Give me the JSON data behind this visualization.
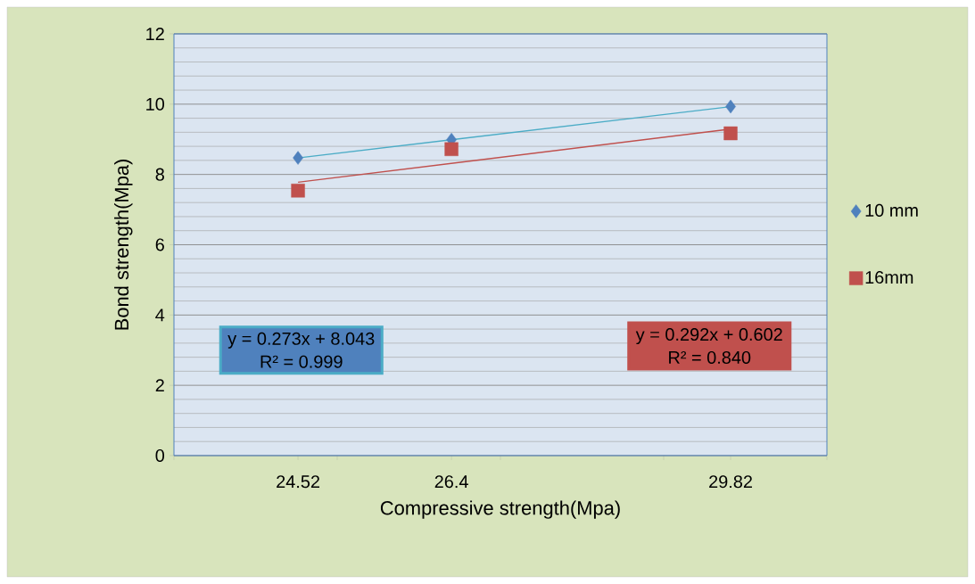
{
  "chart_data": {
    "type": "scatter",
    "xlabel": "Compressive strength(Mpa)",
    "ylabel": "Bond strength(Mpa)",
    "xlim": [
      23,
      31
    ],
    "xticks": [
      {
        "value": 23,
        "label": null
      },
      {
        "value": 24.52,
        "label": "24.52"
      },
      {
        "value": 25,
        "label": null
      },
      {
        "value": 26.4,
        "label": "26.4"
      },
      {
        "value": 27,
        "label": null
      },
      {
        "value": 29,
        "label": null
      },
      {
        "value": 29.82,
        "label": "29.82"
      },
      {
        "value": 31,
        "label": null
      }
    ],
    "ylim": [
      0,
      12
    ],
    "yticks": [
      0,
      2,
      4,
      6,
      8,
      10,
      12
    ],
    "grid": "y",
    "legend": "right",
    "series": [
      {
        "name": "10 mm",
        "color": "#4f81bd",
        "marker": "diamond",
        "x": [
          24.52,
          26.4,
          29.82
        ],
        "values": [
          8.47,
          8.99,
          9.93
        ]
      },
      {
        "name": "16mm",
        "color": "#c0504d",
        "marker": "square",
        "x": [
          24.52,
          26.4,
          29.82
        ],
        "values": [
          7.54,
          8.72,
          9.17
        ]
      },
      {
        "type": "line",
        "color": "#4bacc6",
        "marker": "none",
        "x": [
          24.52,
          29.82
        ],
        "values": [
          8.47,
          9.93
        ]
      },
      {
        "type": "line",
        "color": "#c0504d",
        "marker": "none",
        "x": [
          24.52,
          29.82
        ],
        "values": [
          7.78,
          9.29
        ]
      }
    ],
    "annotations": [
      "y = 0.273x + 8.043",
      "R² = 0.999",
      "y = 0.292x + 0.602",
      "R² = 0.840"
    ]
  }
}
